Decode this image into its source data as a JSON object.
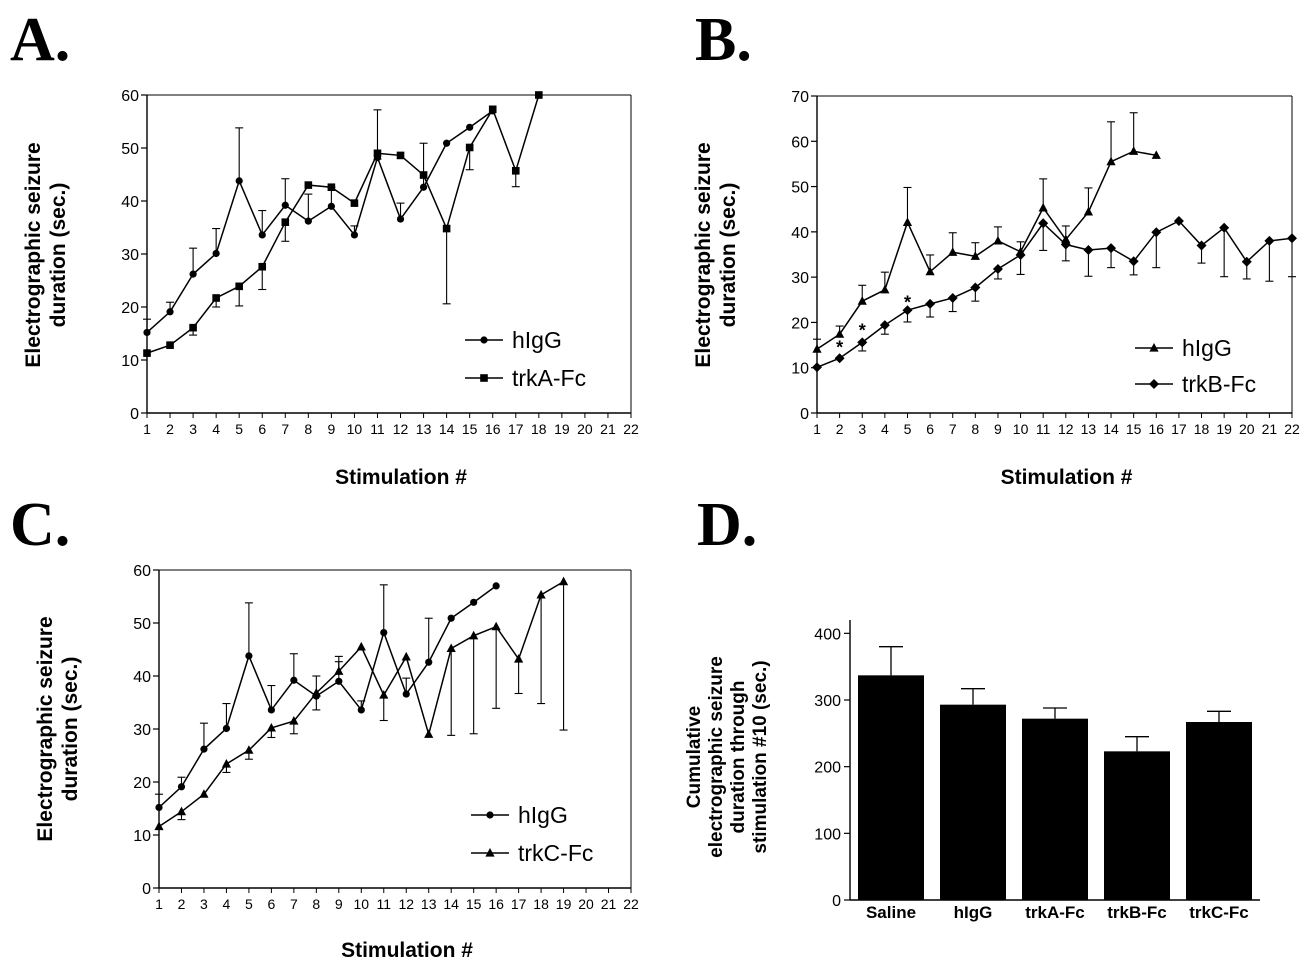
{
  "chart_data": [
    {
      "panel": "A.",
      "type": "line",
      "xlabel": "Stimulation #",
      "ylabel": [
        "Electrographic seizure",
        "duration (sec.)"
      ],
      "xlim": [
        1,
        22
      ],
      "ylim": [
        0,
        60
      ],
      "yticks": [
        0,
        10,
        20,
        30,
        40,
        50,
        60
      ],
      "x_ticks": [
        1,
        2,
        3,
        4,
        5,
        6,
        7,
        8,
        9,
        10,
        11,
        12,
        13,
        14,
        15,
        16,
        17,
        18,
        19,
        20,
        21,
        22
      ],
      "legend_position": "bottom-right",
      "series": [
        {
          "name": "hIgG",
          "marker": "circle",
          "x": [
            1,
            2,
            3,
            4,
            5,
            6,
            7,
            8,
            9,
            10,
            11,
            12,
            13,
            14,
            15,
            16
          ],
          "y": [
            15.2,
            19.1,
            26.2,
            30.1,
            43.8,
            33.6,
            39.2,
            36.2,
            39.0,
            33.6,
            48.2,
            36.6,
            42.6,
            50.9,
            53.9,
            57.0
          ],
          "err": [
            2.5,
            1.8,
            4.9,
            4.7,
            10.0,
            4.6,
            5.0,
            5.1,
            3.6,
            1.7,
            9.0,
            3.0,
            8.3,
            0,
            0,
            0
          ]
        },
        {
          "name": "trkA-Fc",
          "marker": "square",
          "x": [
            1,
            2,
            3,
            4,
            5,
            6,
            7,
            8,
            9,
            10,
            11,
            12,
            13,
            14,
            15,
            16,
            17,
            18
          ],
          "y": [
            11.3,
            12.8,
            16.1,
            21.7,
            23.9,
            27.6,
            36.0,
            43.0,
            42.6,
            39.6,
            49.0,
            48.6,
            44.9,
            34.8,
            50.1,
            57.3,
            45.7,
            60.0
          ],
          "err": [
            0,
            0,
            1.4,
            1.7,
            3.7,
            4.3,
            3.6,
            0,
            0,
            0,
            1.1,
            0,
            0,
            14.2,
            4.2,
            0,
            3.0,
            0
          ],
          "err_dir": [
            1,
            1,
            -1,
            -1,
            -1,
            -1,
            -1,
            1,
            1,
            1,
            -1,
            1,
            1,
            -1,
            -1,
            1,
            -1,
            1
          ]
        }
      ]
    },
    {
      "panel": "B.",
      "type": "line",
      "xlabel": "Stimulation #",
      "ylabel": [
        "Electrographic seizure",
        "duration (sec.)"
      ],
      "xlim": [
        1,
        22
      ],
      "ylim": [
        0,
        70
      ],
      "yticks": [
        0,
        10,
        20,
        30,
        40,
        50,
        60,
        70
      ],
      "x_ticks": [
        1,
        2,
        3,
        4,
        5,
        6,
        7,
        8,
        9,
        10,
        11,
        12,
        13,
        14,
        15,
        16,
        17,
        18,
        19,
        20,
        21,
        22
      ],
      "legend_position": "bottom-right",
      "annotations": [
        {
          "text": "*",
          "x": 2,
          "y": 14.5
        },
        {
          "text": "*",
          "x": 3,
          "y": 18.2
        },
        {
          "text": "*",
          "x": 5,
          "y": 24.4
        }
      ],
      "series": [
        {
          "name": "hIgG",
          "marker": "triangle",
          "x": [
            1,
            2,
            3,
            4,
            5,
            6,
            7,
            8,
            9,
            10,
            11,
            12,
            13,
            14,
            15,
            16
          ],
          "y": [
            14.1,
            17.4,
            24.7,
            27.2,
            42.1,
            31.2,
            35.5,
            34.6,
            38.0,
            35.6,
            45.3,
            38.3,
            44.4,
            55.5,
            57.8,
            56.9
          ],
          "err": [
            2.2,
            1.8,
            3.5,
            3.9,
            7.7,
            3.7,
            4.3,
            3.0,
            3.1,
            2.2,
            6.4,
            3.0,
            5.3,
            8.8,
            8.5,
            0
          ]
        },
        {
          "name": "trkB-Fc",
          "marker": "diamond",
          "x": [
            1,
            2,
            3,
            4,
            5,
            6,
            7,
            8,
            9,
            10,
            11,
            12,
            13,
            14,
            15,
            16,
            17,
            18,
            19,
            20,
            21,
            22
          ],
          "y": [
            10.1,
            12.1,
            15.6,
            19.4,
            22.7,
            24.1,
            25.4,
            27.7,
            31.8,
            34.9,
            41.9,
            37.2,
            36.0,
            36.4,
            33.5,
            39.9,
            42.4,
            37.0,
            40.9,
            33.4,
            38.0,
            38.6
          ],
          "err": [
            0,
            0,
            1.9,
            2.0,
            2.6,
            2.9,
            3.0,
            3.0,
            2.2,
            4.3,
            6.0,
            3.6,
            5.8,
            4.3,
            3.0,
            7.8,
            0,
            3.9,
            10.8,
            3.8,
            8.9,
            8.5
          ],
          "err_dir": [
            1,
            1,
            -1,
            -1,
            -1,
            -1,
            -1,
            -1,
            -1,
            -1,
            -1,
            -1,
            -1,
            -1,
            -1,
            -1,
            1,
            -1,
            -1,
            -1,
            -1,
            -1
          ]
        }
      ]
    },
    {
      "panel": "C.",
      "type": "line",
      "xlabel": "Stimulation #",
      "ylabel": [
        "Electrographic seizure",
        "duration (sec.)"
      ],
      "xlim": [
        1,
        22
      ],
      "ylim": [
        0,
        60
      ],
      "yticks": [
        0,
        10,
        20,
        30,
        40,
        50,
        60
      ],
      "x_ticks": [
        1,
        2,
        3,
        4,
        5,
        6,
        7,
        8,
        9,
        10,
        11,
        12,
        13,
        14,
        15,
        16,
        17,
        18,
        19,
        20,
        21,
        22
      ],
      "legend_position": "bottom-right",
      "series": [
        {
          "name": "hIgG",
          "marker": "circle",
          "x": [
            1,
            2,
            3,
            4,
            5,
            6,
            7,
            8,
            9,
            10,
            11,
            12,
            13,
            14,
            15,
            16
          ],
          "y": [
            15.2,
            19.1,
            26.2,
            30.1,
            43.8,
            33.6,
            39.2,
            36.2,
            39.0,
            33.6,
            48.2,
            36.6,
            42.6,
            50.9,
            53.9,
            57.0
          ],
          "err": [
            2.5,
            1.8,
            4.9,
            4.7,
            10.0,
            4.6,
            5.0,
            3.8,
            3.7,
            1.7,
            9.0,
            3.0,
            8.3,
            0,
            0,
            0
          ]
        },
        {
          "name": "trkC-Fc",
          "marker": "triangle",
          "x": [
            1,
            2,
            3,
            4,
            5,
            6,
            7,
            8,
            9,
            10,
            11,
            12,
            13,
            14,
            15,
            16,
            17,
            18,
            19
          ],
          "y": [
            11.6,
            14.4,
            17.7,
            23.4,
            26.0,
            30.2,
            31.5,
            36.8,
            40.9,
            45.5,
            36.4,
            43.6,
            29.0,
            45.2,
            47.6,
            49.3,
            43.2,
            55.3,
            57.8
          ],
          "err": [
            0,
            1.5,
            0,
            1.6,
            1.7,
            1.8,
            2.4,
            3.2,
            2.8,
            0,
            4.8,
            0,
            0,
            16.4,
            18.5,
            15.4,
            6.5,
            20.5,
            28.0
          ],
          "err_dir": [
            1,
            -1,
            1,
            -1,
            -1,
            -1,
            -1,
            -1,
            1,
            1,
            -1,
            1,
            1,
            -1,
            -1,
            -1,
            -1,
            -1,
            -1
          ]
        }
      ]
    },
    {
      "panel": "D.",
      "type": "bar",
      "ylabel": [
        "Cumulative",
        "electrographic seizure",
        "duration through",
        "stimulation #10 (sec.)"
      ],
      "categories": [
        "Saline",
        "hIgG",
        "trkA-Fc",
        "trkB-Fc",
        "trkC-Fc"
      ],
      "values": [
        337,
        293,
        272,
        223,
        267
      ],
      "err": [
        43,
        24,
        16,
        22,
        16
      ],
      "ylim": [
        0,
        420
      ],
      "yticks": [
        0,
        100,
        200,
        300,
        400
      ]
    }
  ]
}
